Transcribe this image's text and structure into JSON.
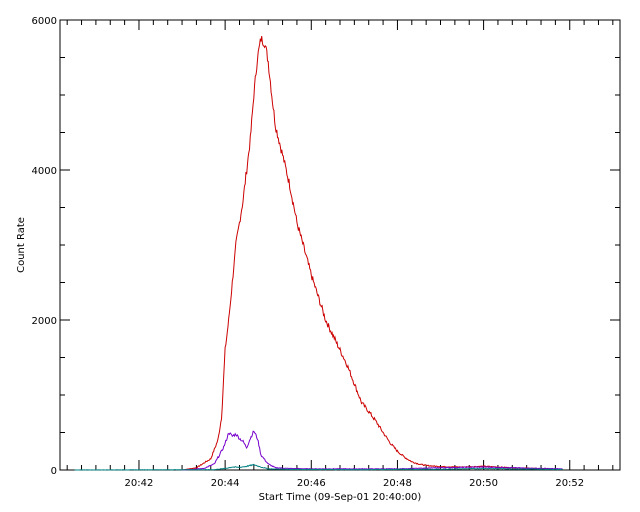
{
  "chart_data": {
    "type": "line",
    "title": "",
    "xlabel": "Start Time (09-Sep-01 20:40:00)",
    "ylabel": "Count Rate",
    "x_unit": "time",
    "xlim": [
      "20:40:10",
      "20:53:10"
    ],
    "ylim": [
      0,
      6000
    ],
    "x_ticks": [
      "20:42",
      "20:44",
      "20:46",
      "20:48",
      "20:50",
      "20:52"
    ],
    "y_ticks": [
      0,
      2000,
      4000,
      6000
    ],
    "grid": false,
    "legend": "none",
    "series": [
      {
        "color": "#cc0000",
        "points": [
          [
            "20:43:00",
            0
          ],
          [
            "20:43:20",
            30
          ],
          [
            "20:43:40",
            150
          ],
          [
            "20:43:50",
            400
          ],
          [
            "20:43:55",
            700
          ],
          [
            "20:44:00",
            1600
          ],
          [
            "20:44:05",
            2000
          ],
          [
            "20:44:10",
            2500
          ],
          [
            "20:44:15",
            3000
          ],
          [
            "20:44:20",
            3300
          ],
          [
            "20:44:25",
            3600
          ],
          [
            "20:44:30",
            4000
          ],
          [
            "20:44:35",
            4400
          ],
          [
            "20:44:40",
            5000
          ],
          [
            "20:44:45",
            5500
          ],
          [
            "20:44:50",
            5750
          ],
          [
            "20:44:55",
            5700
          ],
          [
            "20:45:00",
            5450
          ],
          [
            "20:45:05",
            5000
          ],
          [
            "20:45:10",
            4600
          ],
          [
            "20:45:20",
            4200
          ],
          [
            "20:45:30",
            3800
          ],
          [
            "20:45:40",
            3300
          ],
          [
            "20:45:50",
            2950
          ],
          [
            "20:46:00",
            2600
          ],
          [
            "20:46:10",
            2300
          ],
          [
            "20:46:20",
            2000
          ],
          [
            "20:46:30",
            1800
          ],
          [
            "20:46:40",
            1600
          ],
          [
            "20:46:50",
            1400
          ],
          [
            "20:47:00",
            1150
          ],
          [
            "20:47:10",
            900
          ],
          [
            "20:47:20",
            780
          ],
          [
            "20:47:30",
            650
          ],
          [
            "20:47:40",
            500
          ],
          [
            "20:47:50",
            360
          ],
          [
            "20:48:00",
            250
          ],
          [
            "20:48:10",
            170
          ],
          [
            "20:48:20",
            110
          ],
          [
            "20:48:30",
            80
          ],
          [
            "20:48:40",
            60
          ],
          [
            "20:49:00",
            45
          ],
          [
            "20:49:30",
            40
          ],
          [
            "20:50:00",
            50
          ],
          [
            "20:50:20",
            40
          ],
          [
            "20:50:40",
            30
          ],
          [
            "20:51:00",
            25
          ],
          [
            "20:51:30",
            15
          ],
          [
            "20:51:50",
            10
          ]
        ]
      },
      {
        "color": "#7700cc",
        "points": [
          [
            "20:43:00",
            0
          ],
          [
            "20:43:30",
            20
          ],
          [
            "20:43:45",
            80
          ],
          [
            "20:43:55",
            250
          ],
          [
            "20:44:00",
            350
          ],
          [
            "20:44:05",
            500
          ],
          [
            "20:44:10",
            450
          ],
          [
            "20:44:15",
            480
          ],
          [
            "20:44:20",
            420
          ],
          [
            "20:44:25",
            380
          ],
          [
            "20:44:30",
            300
          ],
          [
            "20:44:35",
            420
          ],
          [
            "20:44:40",
            520
          ],
          [
            "20:44:45",
            420
          ],
          [
            "20:44:50",
            200
          ],
          [
            "20:45:00",
            80
          ],
          [
            "20:45:10",
            30
          ],
          [
            "20:45:30",
            20
          ],
          [
            "20:46:00",
            15
          ],
          [
            "20:48:00",
            15
          ],
          [
            "20:49:00",
            30
          ],
          [
            "20:50:00",
            40
          ],
          [
            "20:51:00",
            25
          ],
          [
            "20:51:50",
            15
          ]
        ]
      },
      {
        "color": "#008080",
        "points": [
          [
            "20:40:30",
            0
          ],
          [
            "20:43:45",
            5
          ],
          [
            "20:44:00",
            20
          ],
          [
            "20:44:10",
            40
          ],
          [
            "20:44:20",
            35
          ],
          [
            "20:44:30",
            50
          ],
          [
            "20:44:40",
            70
          ],
          [
            "20:44:50",
            40
          ],
          [
            "20:45:00",
            15
          ],
          [
            "20:45:30",
            8
          ],
          [
            "20:47:00",
            5
          ],
          [
            "20:49:00",
            10
          ],
          [
            "20:50:00",
            20
          ],
          [
            "20:51:00",
            12
          ],
          [
            "20:51:50",
            8
          ]
        ]
      }
    ]
  }
}
